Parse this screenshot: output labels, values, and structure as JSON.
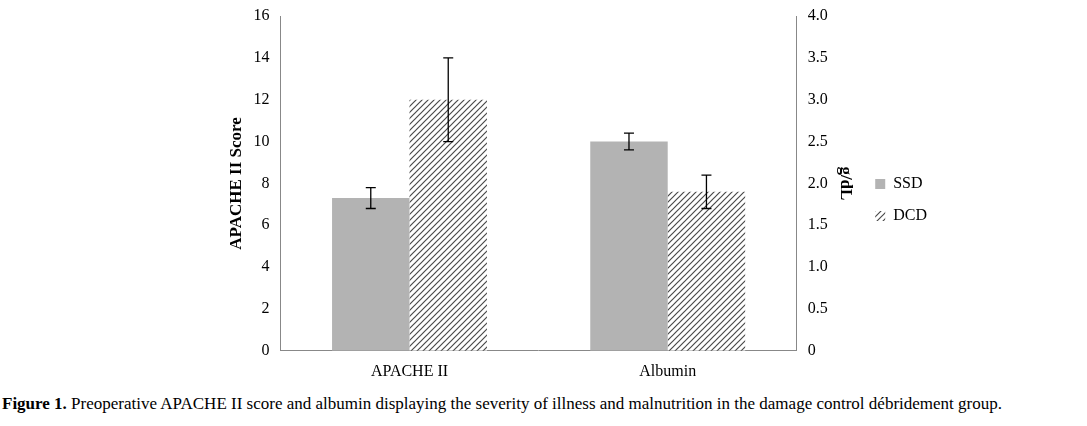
{
  "chart_data": {
    "type": "bar",
    "categories": [
      "APACHE II",
      "Albumin"
    ],
    "y_label": "APACHE II Score",
    "y2_label": "g/dL",
    "ylim": [
      0,
      16
    ],
    "yticks": [
      0,
      2,
      4,
      6,
      8,
      10,
      12,
      14,
      16
    ],
    "y2lim": [
      0,
      4
    ],
    "y2ticks": [
      0,
      0.5,
      1,
      1.5,
      2,
      2.5,
      3,
      3.5,
      4
    ],
    "grid": false,
    "legend": "right",
    "series": [
      {
        "name": "SSD",
        "color": "#b3b3b3",
        "marker": "solid",
        "axis": "y",
        "values": [
          7.3,
          null
        ],
        "errors": [
          0.5,
          null
        ]
      },
      {
        "name": "DCD",
        "color": "#4a4a4a",
        "marker": "hatch",
        "axis": "y",
        "values": [
          12,
          null
        ],
        "errors": [
          2,
          null
        ]
      },
      {
        "name": "SSD",
        "color": "#b3b3b3",
        "marker": "solid",
        "axis": "y2",
        "values": [
          null,
          2.5
        ],
        "errors": [
          null,
          0.1
        ]
      },
      {
        "name": "DCD",
        "color": "#4a4a4a",
        "marker": "hatch",
        "axis": "y2",
        "values": [
          null,
          1.9
        ],
        "errors": [
          null,
          0.2
        ]
      }
    ],
    "caption_label": "Figure 1.",
    "caption": "Preoperative APACHE II score and albumin displaying the severity of illness and malnutrition in the damage control débridement group."
  }
}
